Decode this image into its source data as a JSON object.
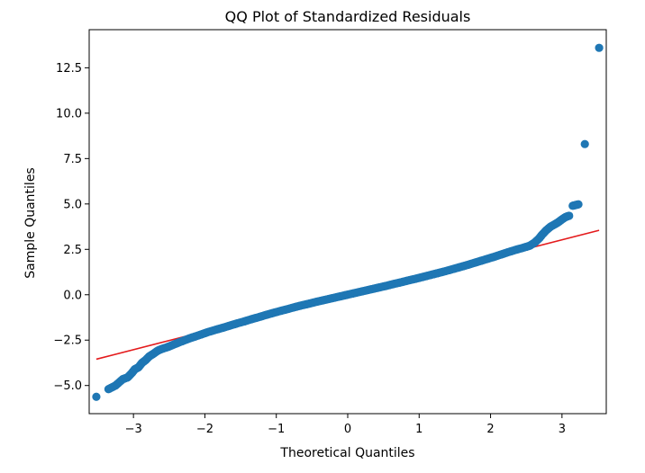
{
  "chart_data": {
    "type": "scatter",
    "title": "QQ Plot of Standardized Residuals",
    "xlabel": "Theoretical Quantiles",
    "ylabel": "Sample Quantiles",
    "xlim": [
      -3.62,
      3.62
    ],
    "ylim": [
      -6.55,
      14.6
    ],
    "x_ticks": [
      -3,
      -2,
      -1,
      0,
      1,
      2,
      3
    ],
    "x_tick_labels": [
      "−3",
      "−2",
      "−1",
      "0",
      "1",
      "2",
      "3"
    ],
    "y_ticks": [
      -5.0,
      -2.5,
      0.0,
      2.5,
      5.0,
      7.5,
      10.0,
      12.5
    ],
    "y_tick_labels": [
      "−5.0",
      "−2.5",
      "0.0",
      "2.5",
      "5.0",
      "7.5",
      "10.0",
      "12.5"
    ],
    "grid": false,
    "colors": {
      "points": "#1f77b4",
      "reference_line": "#e41a1c"
    },
    "reference_line": {
      "x": [
        -3.52,
        3.52
      ],
      "y": [
        -3.55,
        3.55
      ]
    },
    "series": [
      {
        "points": [
          [
            -3.52,
            -5.62
          ],
          [
            -3.35,
            -5.2
          ],
          [
            -3.25,
            -5.0
          ],
          [
            -3.15,
            -4.65
          ],
          [
            -3.08,
            -4.55
          ],
          [
            -3.02,
            -4.3
          ],
          [
            -2.98,
            -4.1
          ],
          [
            -2.93,
            -4.0
          ],
          [
            -2.88,
            -3.75
          ],
          [
            -2.83,
            -3.6
          ],
          [
            -2.78,
            -3.4
          ],
          [
            -2.72,
            -3.25
          ],
          [
            -2.66,
            -3.08
          ],
          [
            -2.6,
            -2.98
          ],
          [
            -2.52,
            -2.88
          ],
          [
            -2.44,
            -2.75
          ],
          [
            -2.36,
            -2.62
          ],
          [
            -2.28,
            -2.5
          ],
          [
            -2.2,
            -2.38
          ],
          [
            -2.12,
            -2.28
          ],
          [
            -2.04,
            -2.17
          ],
          [
            -1.96,
            -2.06
          ],
          [
            -1.85,
            -1.93
          ],
          [
            -1.75,
            -1.82
          ],
          [
            -1.65,
            -1.7
          ],
          [
            -1.55,
            -1.58
          ],
          [
            -1.45,
            -1.47
          ],
          [
            -1.35,
            -1.35
          ],
          [
            -1.25,
            -1.24
          ],
          [
            -1.15,
            -1.12
          ],
          [
            -1.05,
            -1.01
          ],
          [
            -0.95,
            -0.9
          ],
          [
            -0.85,
            -0.8
          ],
          [
            -0.75,
            -0.69
          ],
          [
            -0.65,
            -0.59
          ],
          [
            -0.55,
            -0.5
          ],
          [
            -0.45,
            -0.4
          ],
          [
            -0.35,
            -0.31
          ],
          [
            -0.25,
            -0.22
          ],
          [
            -0.15,
            -0.13
          ],
          [
            -0.05,
            -0.04
          ],
          [
            0.05,
            0.05
          ],
          [
            0.15,
            0.14
          ],
          [
            0.25,
            0.23
          ],
          [
            0.35,
            0.32
          ],
          [
            0.45,
            0.41
          ],
          [
            0.55,
            0.5
          ],
          [
            0.65,
            0.6
          ],
          [
            0.75,
            0.69
          ],
          [
            0.85,
            0.79
          ],
          [
            0.95,
            0.88
          ],
          [
            1.05,
            0.98
          ],
          [
            1.15,
            1.08
          ],
          [
            1.25,
            1.18
          ],
          [
            1.35,
            1.28
          ],
          [
            1.45,
            1.39
          ],
          [
            1.55,
            1.5
          ],
          [
            1.65,
            1.61
          ],
          [
            1.75,
            1.73
          ],
          [
            1.85,
            1.85
          ],
          [
            1.95,
            1.97
          ],
          [
            2.05,
            2.09
          ],
          [
            2.15,
            2.22
          ],
          [
            2.25,
            2.35
          ],
          [
            2.35,
            2.47
          ],
          [
            2.45,
            2.58
          ],
          [
            2.55,
            2.7
          ],
          [
            2.62,
            2.88
          ],
          [
            2.68,
            3.1
          ],
          [
            2.72,
            3.3
          ],
          [
            2.78,
            3.55
          ],
          [
            2.84,
            3.75
          ],
          [
            2.9,
            3.88
          ],
          [
            2.95,
            4.0
          ],
          [
            3.0,
            4.15
          ],
          [
            3.05,
            4.28
          ],
          [
            3.1,
            4.35
          ],
          [
            3.15,
            4.9
          ],
          [
            3.23,
            4.98
          ],
          [
            3.32,
            8.3
          ],
          [
            3.52,
            13.6
          ]
        ]
      }
    ]
  }
}
